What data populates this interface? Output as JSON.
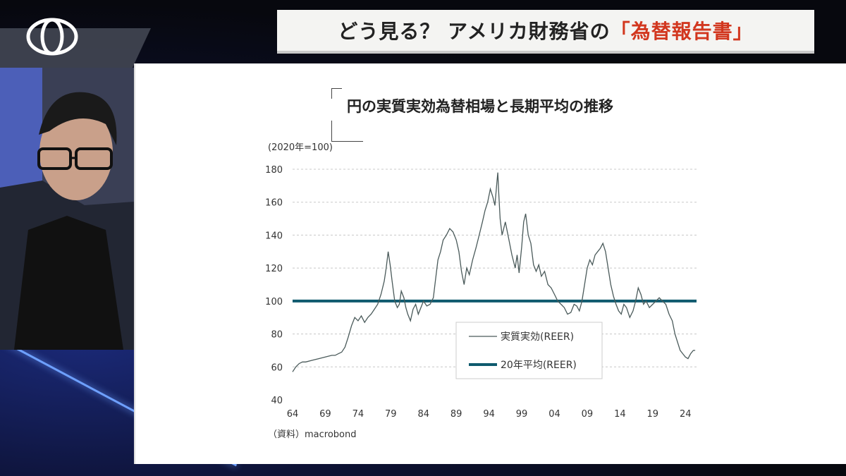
{
  "header": {
    "title_prefix": "どう見る？ アメリカ財務省の",
    "title_highlight": "「為替報告書」"
  },
  "logo": {
    "icon": "double-o-logo-icon"
  },
  "presenter": {
    "description_icon": "presenter-video-feed"
  },
  "chart_data": {
    "type": "line",
    "title": "円の実質実効為替相場と長期平均の推移",
    "unit_label": "(2020年=100)",
    "source": "（資料）macrobond",
    "ylim": [
      40,
      180
    ],
    "yticks": [
      40,
      60,
      80,
      100,
      120,
      140,
      160,
      180
    ],
    "xlim": [
      1964,
      2025.7
    ],
    "xticks": [
      1964,
      1969,
      1974,
      1979,
      1984,
      1989,
      1994,
      1999,
      2004,
      2009,
      2014,
      2019,
      2024
    ],
    "xtick_labels": [
      "64",
      "69",
      "74",
      "79",
      "84",
      "89",
      "94",
      "99",
      "04",
      "09",
      "14",
      "19",
      "24"
    ],
    "grid": "horizontal-dashed",
    "legend_position": "center-bottom",
    "series": [
      {
        "name": "実質実効(REER)",
        "color": "#4a5a5a",
        "x": [
          1964.0,
          1964.5,
          1965.0,
          1965.5,
          1966.0,
          1967.0,
          1968.0,
          1969.0,
          1970.0,
          1970.5,
          1971.0,
          1971.5,
          1972.0,
          1972.5,
          1973.0,
          1973.5,
          1974.0,
          1974.5,
          1975.0,
          1975.5,
          1976.0,
          1976.5,
          1977.0,
          1977.5,
          1978.0,
          1978.3,
          1978.6,
          1978.9,
          1979.2,
          1979.6,
          1980.0,
          1980.3,
          1980.6,
          1981.0,
          1981.3,
          1981.6,
          1982.0,
          1982.4,
          1982.8,
          1983.2,
          1983.6,
          1984.0,
          1984.5,
          1985.0,
          1985.5,
          1985.8,
          1986.2,
          1986.6,
          1987.0,
          1987.5,
          1988.0,
          1988.5,
          1989.0,
          1989.4,
          1989.8,
          1990.2,
          1990.6,
          1991.0,
          1991.5,
          1992.0,
          1992.5,
          1993.0,
          1993.4,
          1993.8,
          1994.2,
          1994.6,
          1994.9,
          1995.2,
          1995.35,
          1995.5,
          1995.7,
          1996.0,
          1996.5,
          1997.0,
          1997.5,
          1998.0,
          1998.3,
          1998.6,
          1999.0,
          1999.3,
          1999.6,
          2000.0,
          2000.4,
          2000.8,
          2001.2,
          2001.6,
          2002.0,
          2002.5,
          2003.0,
          2003.5,
          2004.0,
          2004.5,
          2005.0,
          2005.5,
          2006.0,
          2006.5,
          2007.0,
          2007.4,
          2007.8,
          2008.2,
          2008.6,
          2009.0,
          2009.4,
          2009.8,
          2010.2,
          2010.6,
          2011.0,
          2011.4,
          2011.8,
          2012.2,
          2012.6,
          2013.0,
          2013.4,
          2013.8,
          2014.2,
          2014.6,
          2015.0,
          2015.5,
          2016.0,
          2016.4,
          2016.8,
          2017.2,
          2017.6,
          2018.0,
          2018.5,
          2019.0,
          2019.5,
          2020.0,
          2020.5,
          2021.0,
          2021.5,
          2022.0,
          2022.4,
          2022.8,
          2023.2,
          2023.6,
          2024.0,
          2024.4,
          2024.8,
          2025.2,
          2025.5
        ],
        "y": [
          57,
          60,
          62,
          63,
          63,
          64,
          65,
          66,
          67,
          67,
          68,
          69,
          72,
          78,
          85,
          90,
          88,
          91,
          87,
          90,
          92,
          95,
          98,
          104,
          112,
          120,
          130,
          122,
          112,
          100,
          96,
          98,
          106,
          102,
          96,
          92,
          88,
          95,
          98,
          92,
          96,
          100,
          97,
          98,
          102,
          112,
          125,
          130,
          137,
          140,
          144,
          142,
          137,
          130,
          118,
          110,
          120,
          116,
          125,
          132,
          140,
          148,
          155,
          160,
          168,
          163,
          158,
          172,
          178,
          165,
          150,
          140,
          148,
          138,
          128,
          120,
          128,
          117,
          133,
          148,
          153,
          140,
          135,
          122,
          118,
          122,
          115,
          118,
          110,
          108,
          104,
          100,
          98,
          96,
          92,
          93,
          98,
          97,
          94,
          100,
          110,
          120,
          125,
          122,
          128,
          130,
          132,
          135,
          130,
          120,
          110,
          103,
          98,
          94,
          92,
          98,
          96,
          90,
          94,
          100,
          108,
          104,
          98,
          100,
          96,
          98,
          100,
          102,
          100,
          98,
          92,
          88,
          80,
          75,
          70,
          68,
          66,
          65,
          68,
          70,
          70
        ],
        "line_width": 1.3
      },
      {
        "name": "20年平均(REER)",
        "color": "#0f5a6e",
        "value": 100,
        "line_width": 4
      }
    ]
  }
}
